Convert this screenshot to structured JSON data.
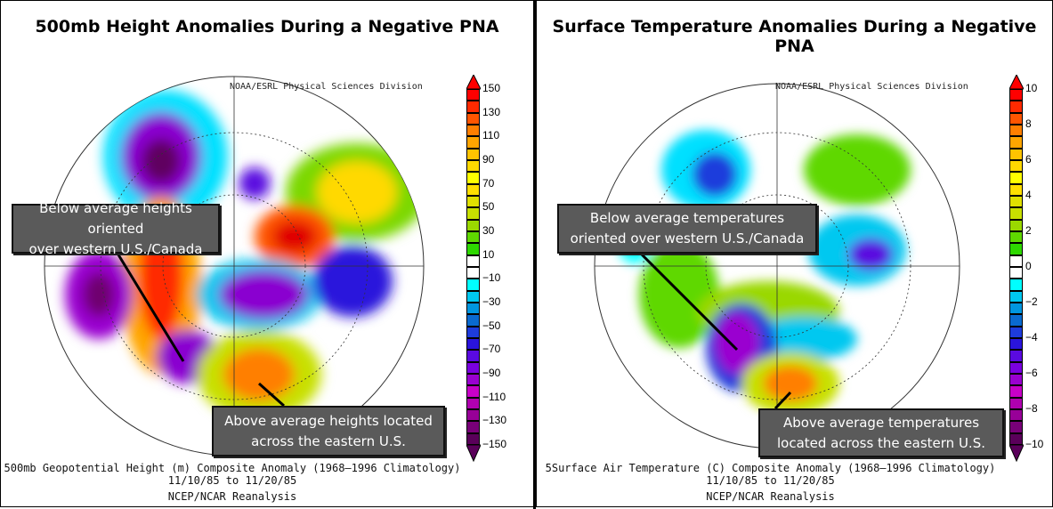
{
  "left_panel": {
    "title": "500mb Height Anomalies During a Negative PNA",
    "credit": "NOAA/ESRL Physical Sciences Division",
    "caption_line1": "500mb Geopotential Height (m) Composite Anomaly (1968–1996 Climatology)",
    "caption_line2": "11/10/85  to 11/20/85",
    "caption_line3": "NCEP/NCAR Reanalysis",
    "callout_1": [
      "Below average heights oriented",
      "over western U.S./Canada"
    ],
    "callout_2": [
      "Above average heights located",
      "across the eastern U.S."
    ],
    "colorbar_labels": [
      "150",
      "130",
      "110",
      "90",
      "70",
      "50",
      "30",
      "10",
      "−10",
      "−30",
      "−50",
      "−70",
      "−90",
      "−110",
      "−130",
      "−150"
    ]
  },
  "right_panel": {
    "title": "Surface Temperature Anomalies During a Negative PNA",
    "credit": "NOAA/ESRL Physical Sciences Division",
    "caption_line1": "5Surface Air Temperature (C) Composite Anomaly (1968–1996 Climatology)",
    "caption_line2": "11/10/85  to 11/20/85",
    "caption_line3": "NCEP/NCAR Reanalysis",
    "callout_1": [
      "Below average temperatures",
      "oriented over western U.S./Canada"
    ],
    "callout_2": [
      "Above average temperatures",
      "located across the eastern U.S."
    ],
    "colorbar_labels": [
      "10",
      "8",
      "6",
      "4",
      "2",
      "0",
      "−2",
      "−4",
      "−6",
      "−8",
      "−10"
    ]
  },
  "colors": {
    "colorbar": [
      "#ff0000",
      "#ff2a00",
      "#ff5500",
      "#ff7f00",
      "#ffa500",
      "#ffc400",
      "#ffd900",
      "#ffff00",
      "#ffdf00",
      "#e0e000",
      "#c8e000",
      "#9ad800",
      "#5fd800",
      "#2ed800",
      "#ffffff",
      "#ffffff",
      "#00ffff",
      "#00c8f0",
      "#0096e0",
      "#0a6ad0",
      "#1e3cdc",
      "#2a14dc",
      "#5a0ae0",
      "#7a00e0",
      "#9a00d0",
      "#c800c8",
      "#b000b0",
      "#980098",
      "#780078",
      "#5a005a"
    ],
    "callout_bg": "#5a5a5a",
    "divider": "#000000"
  }
}
